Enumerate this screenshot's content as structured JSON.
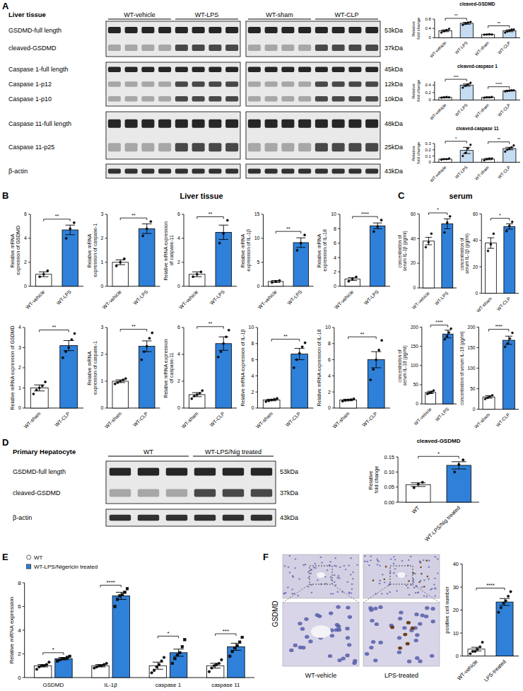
{
  "panel_labels": [
    "A",
    "B",
    "C",
    "D",
    "E",
    "F"
  ],
  "section_titles": [
    "Liver tissue",
    "serum"
  ],
  "blots": [
    {
      "title": "Liver tissue",
      "groups": [
        "WT-vehicle",
        "WT-LPS",
        "WT-sham",
        "WT-CLP"
      ],
      "boxes": [
        [
          {
            "name": "GSDMD-full length",
            "size": "53kDa"
          },
          {
            "name": "cleaved-GSDMD",
            "size": "37kDa"
          }
        ],
        [
          {
            "name": "Caspase 1-full length",
            "size": "45kDa"
          },
          {
            "name": "Caspase 1-p12",
            "size": "12kDa"
          },
          {
            "name": "Caspase 1-p10",
            "size": "10kDa"
          }
        ],
        [
          {
            "name": "Caspase 11-full length",
            "size": "48kDa"
          },
          {
            "name": "Caspase 11-p25",
            "size": "25kDa"
          }
        ],
        [
          {
            "name": "β-actin",
            "size": "43kDa"
          }
        ]
      ]
    },
    {
      "title": "Primary Hepatocyte",
      "groups": [
        "WT",
        "WT-LPS/Nig treated"
      ],
      "boxes": [
        [
          {
            "name": "GSDMD-full length",
            "size": "53kDa"
          },
          {
            "name": "cleaved-GSDMD",
            "size": "37kDa"
          }
        ],
        [
          {
            "name": "β-actin",
            "size": "43kDa"
          }
        ]
      ]
    }
  ],
  "images": {
    "label": "GSDMD",
    "captions": [
      "WT-vehicle",
      "LPS-treated"
    ]
  },
  "chart_data": [
    {
      "type": "bar",
      "title": "cleaved-GSDMD",
      "y_label": "Relative fold change",
      "categories": [
        "WT-vehicle",
        "WT-LPS",
        "WT-sham",
        "WT-CLP"
      ],
      "values": [
        0.3,
        0.62,
        0.14,
        0.3
      ],
      "errors": [
        0.04,
        0.04,
        0.01,
        0.04
      ],
      "points": [
        [
          0.22,
          0.28,
          0.33,
          0.38
        ],
        [
          0.55,
          0.6,
          0.65,
          0.68
        ],
        [
          0.13,
          0.14,
          0.15,
          0.14
        ],
        [
          0.22,
          0.27,
          0.31,
          0.35,
          0.36
        ]
      ],
      "colors": [
        "#ffffff",
        "#c5dcf2",
        "#ffffff",
        "#c5dcf2"
      ],
      "ylim": [
        0,
        0.8
      ],
      "yticks": [
        0,
        0.4,
        0.8
      ],
      "significance": [
        "**",
        "**"
      ]
    },
    {
      "type": "bar",
      "title": "cleaved-caspase 1",
      "y_label": "Relative fold change",
      "categories": [
        "WT-vehicle",
        "WT-LPS",
        "WT-sham",
        "WT-CLP"
      ],
      "values": [
        0.07,
        0.4,
        0.07,
        0.25
      ],
      "errors": [
        0.01,
        0.03,
        0.01,
        0.01
      ],
      "points": [
        [
          0.06,
          0.07,
          0.08,
          0.07
        ],
        [
          0.33,
          0.38,
          0.42,
          0.46
        ],
        [
          0.06,
          0.07,
          0.07,
          0.08
        ],
        [
          0.23,
          0.24,
          0.25,
          0.26,
          0.26
        ]
      ],
      "colors": [
        "#ffffff",
        "#c5dcf2",
        "#ffffff",
        "#c5dcf2"
      ],
      "ylim": [
        0,
        0.5
      ],
      "yticks": [
        0,
        0.2,
        0.4
      ],
      "significance": [
        "***",
        "****"
      ]
    },
    {
      "type": "bar",
      "title": "cleaved-caspase 11",
      "y_label": "Relative fold change",
      "categories": [
        "WT-vehicle",
        "WT-LPS",
        "WT-sham",
        "WT-CLP"
      ],
      "values": [
        0.05,
        0.19,
        0.05,
        0.22
      ],
      "errors": [
        0.005,
        0.05,
        0.01,
        0.02
      ],
      "points": [
        [
          0.04,
          0.05,
          0.05,
          0.06
        ],
        [
          0.1,
          0.15,
          0.22,
          0.28
        ],
        [
          0.03,
          0.05,
          0.06,
          0.06
        ],
        [
          0.17,
          0.2,
          0.22,
          0.24,
          0.27
        ]
      ],
      "colors": [
        "#ffffff",
        "#c5dcf2",
        "#ffffff",
        "#c5dcf2"
      ],
      "ylim": [
        0,
        0.3
      ],
      "yticks": [
        0,
        0.1,
        0.2,
        0.3
      ],
      "significance": [
        "*",
        "**"
      ]
    },
    {
      "type": "bar",
      "y_label": "Relative mRNA expression of GSDMD",
      "categories": [
        "WT-vehicle",
        "WT-LPS"
      ],
      "values": [
        1.0,
        4.7
      ],
      "errors": [
        0.2,
        0.4
      ],
      "points": [
        [
          0.8,
          1.0,
          1.3
        ],
        [
          4.0,
          4.8,
          5.3
        ]
      ],
      "colors": [
        "#ffffff",
        "#2f80d8"
      ],
      "ylim": [
        0,
        6
      ],
      "yticks": [
        0,
        2,
        4,
        6
      ],
      "significance": "**"
    },
    {
      "type": "bar",
      "y_label": "Relative mRNA expression of caspase-1",
      "categories": [
        "WT-vehicle",
        "WT-LPS"
      ],
      "values": [
        1.0,
        2.4
      ],
      "errors": [
        0.1,
        0.2
      ],
      "points": [
        [
          0.85,
          1.0,
          1.15
        ],
        [
          2.1,
          2.4,
          2.7
        ]
      ],
      "colors": [
        "#ffffff",
        "#2f80d8"
      ],
      "ylim": [
        0,
        3
      ],
      "yticks": [
        0,
        1,
        2,
        3
      ],
      "significance": "**"
    },
    {
      "type": "bar",
      "y_label": "Relative mRNA expression of caspase-11",
      "categories": [
        "WT-vehicle",
        "WT-LPS"
      ],
      "values": [
        1.0,
        4.5
      ],
      "errors": [
        0.2,
        0.6
      ],
      "points": [
        [
          0.8,
          1.0,
          1.2
        ],
        [
          3.6,
          4.4,
          5.5
        ]
      ],
      "colors": [
        "#ffffff",
        "#2f80d8"
      ],
      "ylim": [
        0,
        6
      ],
      "yticks": [
        0,
        2,
        4,
        6
      ],
      "significance": "**"
    },
    {
      "type": "bar",
      "y_label": "Relative mRNA expression of IL-1β",
      "categories": [
        "WT-vehicle",
        "WT-LPS"
      ],
      "values": [
        1.0,
        9.1
      ],
      "errors": [
        0.2,
        1.0
      ],
      "points": [
        [
          0.8,
          1.0,
          1.2
        ],
        [
          7.5,
          9.0,
          10.7
        ]
      ],
      "colors": [
        "#ffffff",
        "#2f80d8"
      ],
      "ylim": [
        0,
        15
      ],
      "yticks": [
        0,
        5,
        10,
        15
      ],
      "significance": "**"
    },
    {
      "type": "bar",
      "y_label": "Relative mRNA expression of IL-18",
      "categories": [
        "WT-vehicle",
        "WT-LPS"
      ],
      "values": [
        1.0,
        8.4
      ],
      "errors": [
        0.2,
        0.4
      ],
      "points": [
        [
          0.7,
          1.0,
          1.3
        ],
        [
          7.6,
          8.3,
          9.2
        ]
      ],
      "colors": [
        "#ffffff",
        "#2f80d8"
      ],
      "ylim": [
        0,
        10
      ],
      "yticks": [
        0,
        2,
        4,
        6,
        8,
        10
      ],
      "significance": "****"
    },
    {
      "type": "bar",
      "y_label": "Relative mRNA expression of GSDMD",
      "categories": [
        "WT-sham",
        "WT-CLP"
      ],
      "values": [
        1.0,
        3.1
      ],
      "errors": [
        0.15,
        0.25
      ],
      "points": [
        [
          0.7,
          0.9,
          1.0,
          1.1,
          1.3
        ],
        [
          2.5,
          2.8,
          3.0,
          3.4,
          3.7
        ]
      ],
      "colors": [
        "#ffffff",
        "#2f80d8"
      ],
      "ylim": [
        0,
        4
      ],
      "yticks": [
        0,
        1,
        2,
        3,
        4
      ],
      "significance": "**"
    },
    {
      "type": "bar",
      "y_label": "Relative mRNA expression of caspase-1",
      "categories": [
        "WT-sham",
        "WT-CLP"
      ],
      "values": [
        1.0,
        2.3
      ],
      "errors": [
        0.05,
        0.2
      ],
      "points": [
        [
          0.9,
          0.95,
          1.0,
          1.05,
          1.1
        ],
        [
          1.8,
          2.1,
          2.3,
          2.6,
          2.8
        ]
      ],
      "colors": [
        "#ffffff",
        "#2f80d8"
      ],
      "ylim": [
        0,
        3
      ],
      "yticks": [
        0,
        1,
        2,
        3
      ],
      "significance": "**"
    },
    {
      "type": "bar",
      "y_label": "Relative mRNA expression of caspase-11",
      "categories": [
        "WT-sham",
        "WT-CLP"
      ],
      "values": [
        1.0,
        4.8
      ],
      "errors": [
        0.15,
        0.5
      ],
      "points": [
        [
          0.7,
          0.9,
          1.0,
          1.1,
          1.3
        ],
        [
          3.8,
          4.2,
          4.8,
          5.3,
          5.8
        ]
      ],
      "colors": [
        "#ffffff",
        "#2f80d8"
      ],
      "ylim": [
        0,
        6
      ],
      "yticks": [
        0,
        2,
        4,
        6
      ],
      "significance": "**"
    },
    {
      "type": "bar",
      "y_label": "Relative mRNA expression of IL-1β",
      "categories": [
        "WT-sham",
        "WT-CLP"
      ],
      "values": [
        1.0,
        6.7
      ],
      "errors": [
        0.1,
        0.7
      ],
      "points": [
        [
          0.8,
          0.9,
          1.0,
          1.1,
          1.2
        ],
        [
          5.0,
          6.0,
          6.8,
          7.6,
          8.1
        ]
      ],
      "colors": [
        "#ffffff",
        "#2f80d8"
      ],
      "ylim": [
        0,
        10
      ],
      "yticks": [
        0,
        2,
        4,
        6,
        8,
        10
      ],
      "significance": "**"
    },
    {
      "type": "bar",
      "y_label": "Relative mRNA expression of IL-18",
      "categories": [
        "WT-sham",
        "WT-CLP"
      ],
      "values": [
        1.0,
        6.0
      ],
      "errors": [
        0.1,
        1.0
      ],
      "points": [
        [
          0.85,
          0.95,
          1.0,
          1.05,
          1.15
        ],
        [
          3.5,
          4.8,
          6.0,
          7.2,
          8.4
        ]
      ],
      "colors": [
        "#ffffff",
        "#2f80d8"
      ],
      "ylim": [
        0,
        10
      ],
      "yticks": [
        0,
        2,
        4,
        6,
        8,
        10
      ],
      "significance": "**"
    },
    {
      "type": "bar",
      "y_label": "concentration of serum IL-1β (pg/ml)",
      "categories": [
        "WT-vehicle",
        "WT-LPS"
      ],
      "values": [
        38,
        52
      ],
      "errors": [
        3,
        4
      ],
      "points": [
        [
          33,
          37,
          44
        ],
        [
          45,
          53,
          58
        ]
      ],
      "colors": [
        "#ffffff",
        "#2f80d8"
      ],
      "ylim": [
        0,
        60
      ],
      "yticks": [
        0,
        20,
        40,
        60
      ],
      "significance": "*"
    },
    {
      "type": "bar",
      "y_label": "concentration of serum IL-1β (pg/ml)",
      "categories": [
        "WT-sham",
        "WT-CLP"
      ],
      "values": [
        38,
        50.5
      ],
      "errors": [
        4,
        2
      ],
      "points": [
        [
          32,
          37,
          45
        ],
        [
          47,
          51,
          54
        ]
      ],
      "colors": [
        "#ffffff",
        "#2f80d8"
      ],
      "ylim": [
        0,
        60
      ],
      "yticks": [
        0,
        20,
        40,
        60
      ],
      "significance": "*"
    },
    {
      "type": "bar",
      "y_label": "concentration of serum IL-18 (pg/ml)",
      "categories": [
        "WT-vehicle",
        "WT-LPS"
      ],
      "values": [
        30,
        182
      ],
      "errors": [
        3,
        10
      ],
      "points": [
        [
          26,
          28,
          31,
          35
        ],
        [
          168,
          176,
          186,
          196
        ]
      ],
      "colors": [
        "#ffffff",
        "#2f80d8"
      ],
      "ylim": [
        0,
        200
      ],
      "yticks": [
        0,
        50,
        100,
        150,
        200
      ],
      "significance": "****"
    },
    {
      "type": "bar",
      "y_label": "concentration of serum IL-18 (pg/ml)",
      "categories": [
        "WT-sham",
        "WT-CLP"
      ],
      "values": [
        30,
        168
      ],
      "errors": [
        3,
        10
      ],
      "points": [
        [
          25,
          28,
          31,
          34
        ],
        [
          152,
          160,
          172,
          186
        ]
      ],
      "colors": [
        "#ffffff",
        "#2f80d8"
      ],
      "ylim": [
        0,
        200
      ],
      "yticks": [
        0,
        50,
        100,
        150,
        200
      ],
      "significance": "****"
    },
    {
      "type": "bar",
      "title": "cleaved-GSDMD",
      "y_label": "Relative fold change",
      "categories": [
        "WT",
        "WT-LPS/Nig treated"
      ],
      "values": [
        0.058,
        0.122
      ],
      "errors": [
        0.006,
        0.012
      ],
      "points": [
        [
          0.048,
          0.06,
          0.066
        ],
        [
          0.1,
          0.125,
          0.14
        ]
      ],
      "colors": [
        "#ffffff",
        "#2f80d8"
      ],
      "ylim": [
        0,
        0.15
      ],
      "yticks": [
        {
          "value": 0,
          "label": "0.00"
        },
        {
          "value": 0.05,
          "label": "0.05"
        },
        {
          "value": 0.1,
          "label": "0.10"
        },
        {
          "value": 0.15,
          "label": "0.15"
        }
      ],
      "significance": "*"
    },
    {
      "type": "bar",
      "y_label": "Relative mRNA expression",
      "categories": [
        "GSDMD",
        "IL-1β",
        "caspase 1",
        "caspase 11"
      ],
      "series": [
        {
          "name": "WT",
          "color": "#ffffff",
          "marker": "circle",
          "values": [
            1.0,
            1.0,
            1.0,
            1.0
          ],
          "errors": [
            0.1,
            0.1,
            0.3,
            0.2
          ],
          "points": [
            [
              0.7,
              0.9,
              1.0,
              1.0,
              1.1,
              1.3
            ],
            [
              0.8,
              0.9,
              1.0,
              1.0,
              1.1,
              1.2
            ],
            [
              0.4,
              0.6,
              0.9,
              1.1,
              1.4,
              1.7
            ],
            [
              0.5,
              0.8,
              1.0,
              1.1,
              1.2,
              1.5
            ]
          ]
        },
        {
          "name": "WT-LPS/Nigericin treated",
          "color": "#2f80d8",
          "marker": "square",
          "values": [
            1.6,
            6.9,
            2.1,
            2.6
          ],
          "errors": [
            0.1,
            0.3,
            0.3,
            0.3
          ],
          "points": [
            [
              1.4,
              1.5,
              1.6,
              1.6,
              1.7,
              1.8
            ],
            [
              6.0,
              6.6,
              6.9,
              7.0,
              7.2,
              7.5
            ],
            [
              1.2,
              1.6,
              1.9,
              2.1,
              2.6,
              3.2
            ],
            [
              1.8,
              2.2,
              2.5,
              2.7,
              3.0,
              3.4
            ]
          ]
        }
      ],
      "legend": "top-left",
      "ylim": [
        0,
        8
      ],
      "yticks": [
        0,
        2,
        4,
        6,
        8
      ],
      "significance": [
        "*",
        "****",
        "*",
        "***"
      ]
    },
    {
      "type": "bar",
      "y_label": "positive cell number",
      "categories": [
        "WT-vehicle",
        "LPS-treated"
      ],
      "values": [
        3,
        23.5
      ],
      "errors": [
        0.8,
        1.5
      ],
      "points": [
        [
          1,
          2,
          2,
          3,
          4,
          6
        ],
        [
          19,
          21,
          23,
          24,
          26,
          28
        ]
      ],
      "colors": [
        "#ffffff",
        "#2f80d8"
      ],
      "ylim": [
        0,
        40
      ],
      "yticks": [
        0,
        10,
        20,
        30,
        40
      ],
      "significance": "****"
    }
  ]
}
